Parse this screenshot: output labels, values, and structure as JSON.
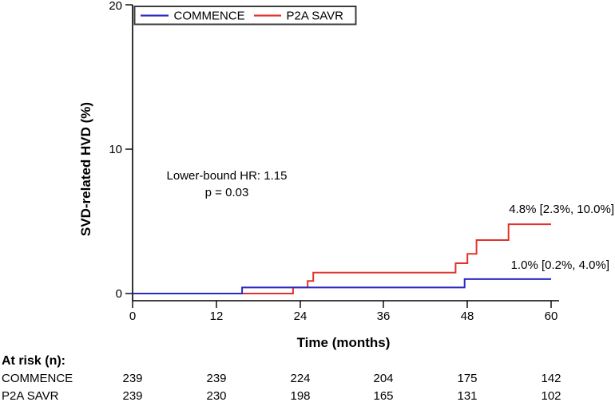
{
  "chart_data": {
    "type": "line",
    "subtype": "kaplan-meier-step",
    "title": "",
    "xlabel": "Time (months)",
    "ylabel": "SVD-related HVD (%)",
    "xlim": [
      0,
      60
    ],
    "ylim": [
      0,
      20
    ],
    "xticks": [
      "0",
      "12",
      "24",
      "36",
      "48",
      "60"
    ],
    "yticks": [
      "0",
      "10",
      "20"
    ],
    "grid": "off",
    "legend_position": "top-left",
    "series": [
      {
        "name": "COMMENCE",
        "color": "#2a2ac0",
        "end_label": "1.0% [0.2%, 4.0%]",
        "points": [
          [
            0,
            0
          ],
          [
            15.7,
            0
          ],
          [
            15.7,
            0.42
          ],
          [
            47.6,
            0.42
          ],
          [
            47.6,
            1.0
          ],
          [
            60,
            1.0
          ]
        ]
      },
      {
        "name": "P2A SAVR",
        "color": "#e2322b",
        "end_label": "4.8% [2.3%, 10.0%]",
        "points": [
          [
            0,
            0
          ],
          [
            23.0,
            0
          ],
          [
            23.0,
            0.42
          ],
          [
            25.1,
            0.42
          ],
          [
            25.1,
            0.87
          ],
          [
            25.9,
            0.87
          ],
          [
            25.9,
            1.45
          ],
          [
            46.3,
            1.45
          ],
          [
            46.3,
            2.1
          ],
          [
            48.0,
            2.1
          ],
          [
            48.0,
            2.75
          ],
          [
            49.3,
            2.75
          ],
          [
            49.3,
            3.7
          ],
          [
            53.9,
            3.7
          ],
          [
            53.9,
            4.8
          ],
          [
            60,
            4.8
          ]
        ]
      }
    ],
    "annotations": [
      "Lower-bound HR: 1.15",
      "p = 0.03"
    ],
    "at_risk": {
      "header": "At risk (n):",
      "rows": [
        {
          "name": "COMMENCE",
          "counts": [
            "239",
            "239",
            "224",
            "204",
            "175",
            "142"
          ]
        },
        {
          "name": "P2A SAVR",
          "counts": [
            "239",
            "230",
            "198",
            "165",
            "131",
            "102"
          ]
        }
      ]
    }
  }
}
